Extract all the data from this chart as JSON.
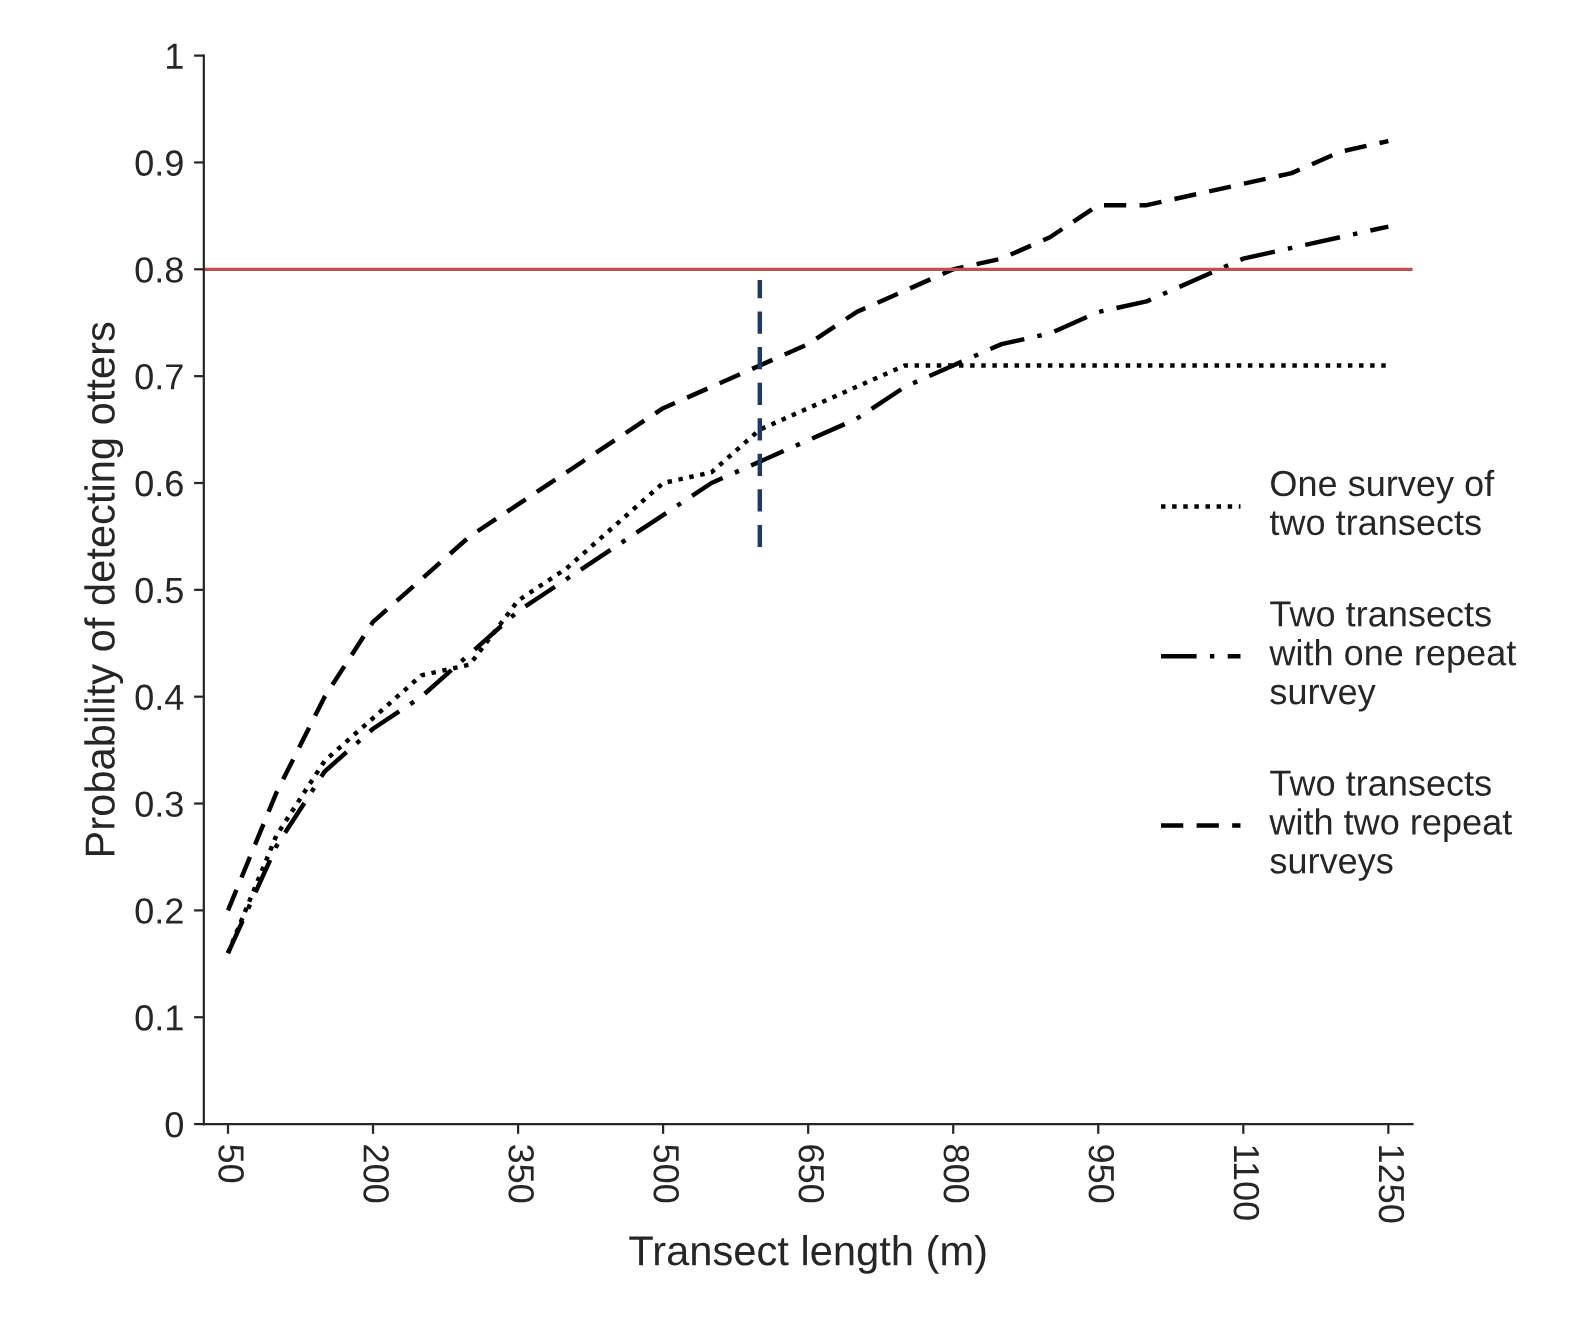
{
  "chart_data": {
    "type": "line",
    "xlabel": "Transect length (m)",
    "ylabel": "Probability of detecting otters",
    "x": [
      50,
      100,
      150,
      200,
      250,
      300,
      350,
      400,
      450,
      500,
      550,
      600,
      650,
      700,
      750,
      800,
      850,
      900,
      950,
      1000,
      1050,
      1100,
      1150,
      1200,
      1250
    ],
    "series": [
      {
        "name": "One survey of\ntwo transects",
        "color": "#000000",
        "line_style": "dotted",
        "values": [
          0.16,
          0.27,
          0.34,
          0.38,
          0.42,
          0.43,
          0.49,
          0.52,
          0.56,
          0.6,
          0.61,
          0.65,
          0.67,
          0.69,
          0.71,
          0.71,
          0.71,
          0.71,
          0.71,
          0.71,
          0.71,
          0.71,
          0.71,
          0.71,
          0.71
        ]
      },
      {
        "name": "Two transects\nwith one repeat\nsurvey",
        "color": "#000000",
        "line_style": "dashdot",
        "values": [
          0.16,
          0.26,
          0.33,
          0.37,
          0.4,
          0.44,
          0.48,
          0.51,
          0.54,
          0.57,
          0.6,
          0.62,
          0.64,
          0.66,
          0.69,
          0.71,
          0.73,
          0.74,
          0.76,
          0.77,
          0.79,
          0.81,
          0.82,
          0.83,
          0.84
        ]
      },
      {
        "name": "Two transects\nwith two repeat\nsurveys",
        "color": "#000000",
        "line_style": "dashed",
        "values": [
          0.2,
          0.31,
          0.4,
          0.47,
          0.51,
          0.55,
          0.58,
          0.61,
          0.64,
          0.67,
          0.69,
          0.71,
          0.73,
          0.76,
          0.78,
          0.8,
          0.81,
          0.83,
          0.86,
          0.86,
          0.87,
          0.88,
          0.89,
          0.91,
          0.92
        ]
      },
      {
        "type": "line",
        "color": "#1f3864",
        "line_style": "dashed",
        "x": [
          600,
          600
        ],
        "values": [
          0.54,
          0.79
        ]
      }
    ],
    "ref_lines": [
      {
        "axis": "y",
        "value": 0.8,
        "color": "#c0504d",
        "line_style": "solid"
      }
    ],
    "xlim": [
      25,
      1275
    ],
    "xticks": [
      50,
      200,
      350,
      500,
      650,
      800,
      950,
      1100,
      1250
    ],
    "ylim": [
      0,
      1
    ],
    "yticks": [
      0,
      0.1,
      0.2,
      0.3,
      0.4,
      0.5,
      0.6,
      0.7,
      0.8,
      0.9,
      1
    ],
    "grid": false,
    "legend": "right",
    "marker": "none"
  }
}
